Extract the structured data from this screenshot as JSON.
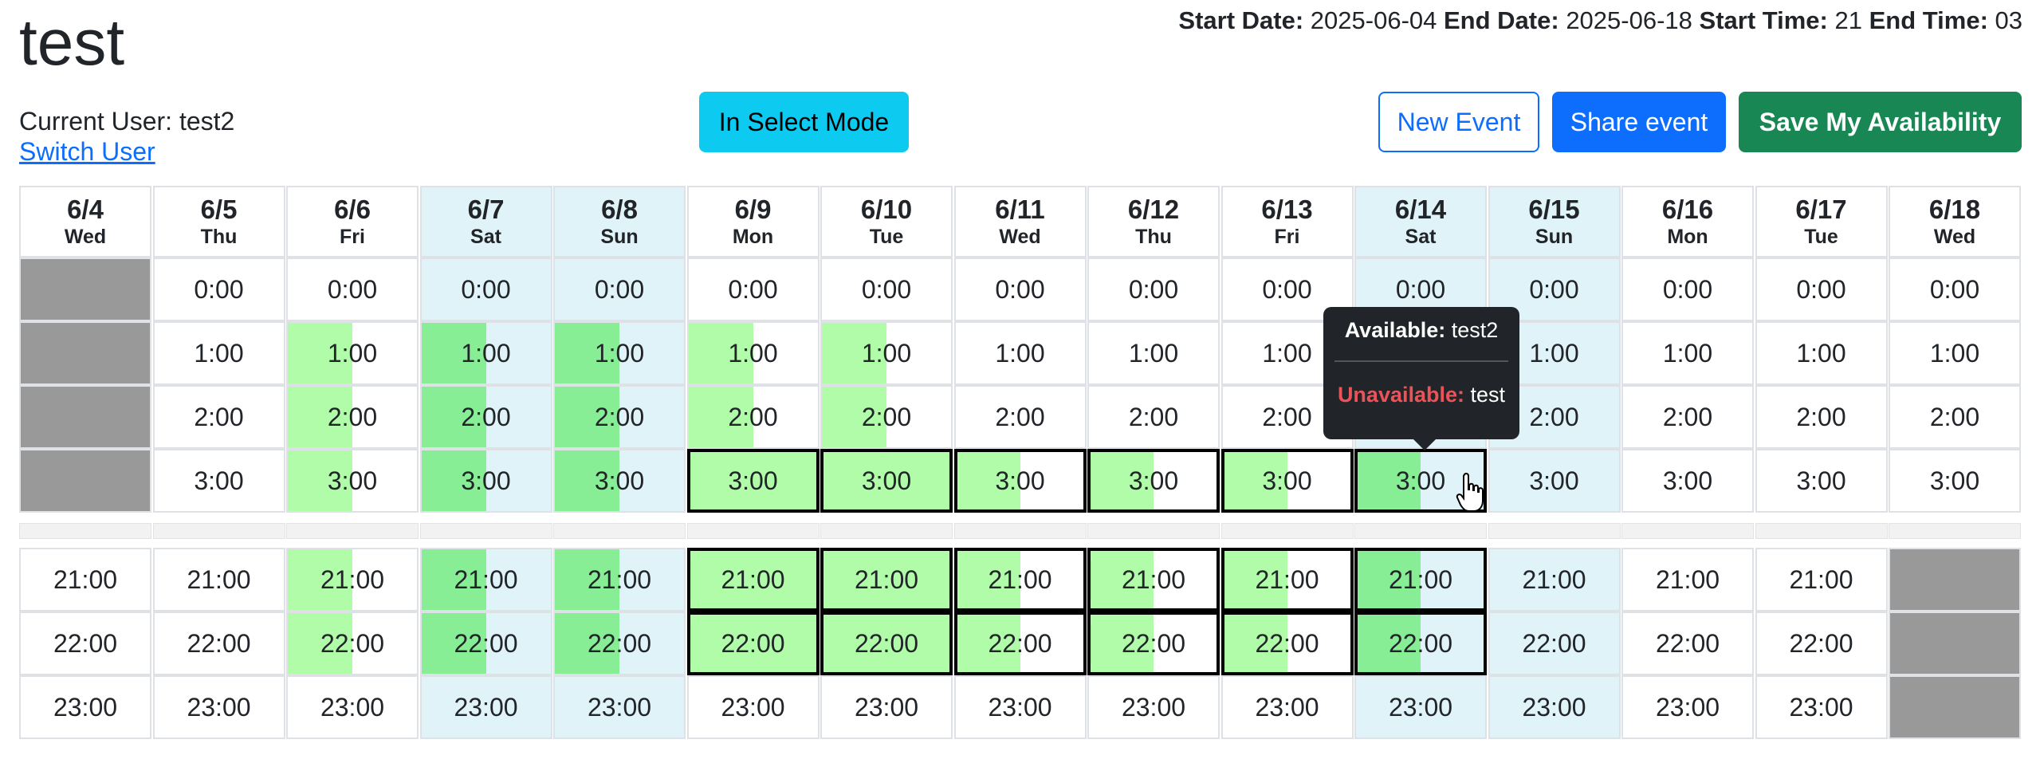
{
  "event": {
    "title": "test"
  },
  "range": {
    "start_date_label": "Start Date:",
    "start_date": "2025-06-04",
    "end_date_label": "End Date:",
    "end_date": "2025-06-18",
    "start_time_label": "Start Time:",
    "start_time": "21",
    "end_time_label": "End Time:",
    "end_time": "03"
  },
  "user": {
    "current_label": "Current User: test2",
    "switch_label": "Switch User"
  },
  "buttons": {
    "mode": "In Select Mode",
    "new_event": "New Event",
    "share": "Share event",
    "save": "Save My Availability"
  },
  "hours": [
    "0:00",
    "1:00",
    "2:00",
    "3:00",
    "21:00",
    "22:00",
    "23:00"
  ],
  "legend_colors": {
    "mine": "#b0fca8",
    "both": "#88ee96",
    "weekend": "#e0f3f8",
    "blocked": "#999999"
  },
  "days": [
    {
      "date": "6/4",
      "weekday": "Wed",
      "weekend": false,
      "cells": [
        "blocked",
        "blocked",
        "blocked",
        "blocked",
        "",
        "",
        ""
      ]
    },
    {
      "date": "6/5",
      "weekday": "Thu",
      "weekend": false,
      "cells": [
        "",
        "",
        "",
        "",
        "",
        "",
        ""
      ]
    },
    {
      "date": "6/6",
      "weekday": "Fri",
      "weekend": false,
      "cells": [
        "",
        "half",
        "half",
        "half",
        "half",
        "half",
        ""
      ]
    },
    {
      "date": "6/7",
      "weekday": "Sat",
      "weekend": true,
      "cells": [
        "",
        "half-both",
        "half-both",
        "half-both",
        "half-both",
        "half-both",
        ""
      ]
    },
    {
      "date": "6/8",
      "weekday": "Sun",
      "weekend": true,
      "cells": [
        "",
        "half-both",
        "half-both",
        "half-both",
        "half-both",
        "half-both",
        ""
      ]
    },
    {
      "date": "6/9",
      "weekday": "Mon",
      "weekend": false,
      "cells": [
        "",
        "half",
        "half",
        "full-sel",
        "full-sel",
        "full-sel",
        ""
      ]
    },
    {
      "date": "6/10",
      "weekday": "Tue",
      "weekend": false,
      "cells": [
        "",
        "half",
        "half",
        "full-sel",
        "full-sel",
        "full-sel",
        ""
      ]
    },
    {
      "date": "6/11",
      "weekday": "Wed",
      "weekend": false,
      "cells": [
        "",
        "",
        "",
        "half-sel",
        "half-sel",
        "half-sel",
        ""
      ]
    },
    {
      "date": "6/12",
      "weekday": "Thu",
      "weekend": false,
      "cells": [
        "",
        "",
        "",
        "half-sel",
        "half-sel",
        "half-sel",
        ""
      ]
    },
    {
      "date": "6/13",
      "weekday": "Fri",
      "weekend": false,
      "cells": [
        "",
        "",
        "",
        "half-sel",
        "half-sel",
        "half-sel",
        ""
      ]
    },
    {
      "date": "6/14",
      "weekday": "Sat",
      "weekend": true,
      "cells": [
        "",
        "",
        "",
        "both-sel",
        "both-sel",
        "both-sel",
        ""
      ]
    },
    {
      "date": "6/15",
      "weekday": "Sun",
      "weekend": true,
      "cells": [
        "",
        "",
        "",
        "",
        "",
        "",
        ""
      ]
    },
    {
      "date": "6/16",
      "weekday": "Mon",
      "weekend": false,
      "cells": [
        "",
        "",
        "",
        "",
        "",
        "",
        ""
      ]
    },
    {
      "date": "6/17",
      "weekday": "Tue",
      "weekend": false,
      "cells": [
        "",
        "",
        "",
        "",
        "",
        "",
        ""
      ]
    },
    {
      "date": "6/18",
      "weekday": "Wed",
      "weekend": false,
      "cells": [
        "",
        "",
        "",
        "",
        "blocked",
        "blocked",
        "blocked"
      ]
    }
  ],
  "tooltip": {
    "available_label": "Available:",
    "available_users": "test2",
    "unavailable_label": "Unavailable:",
    "unavailable_users": "test"
  }
}
